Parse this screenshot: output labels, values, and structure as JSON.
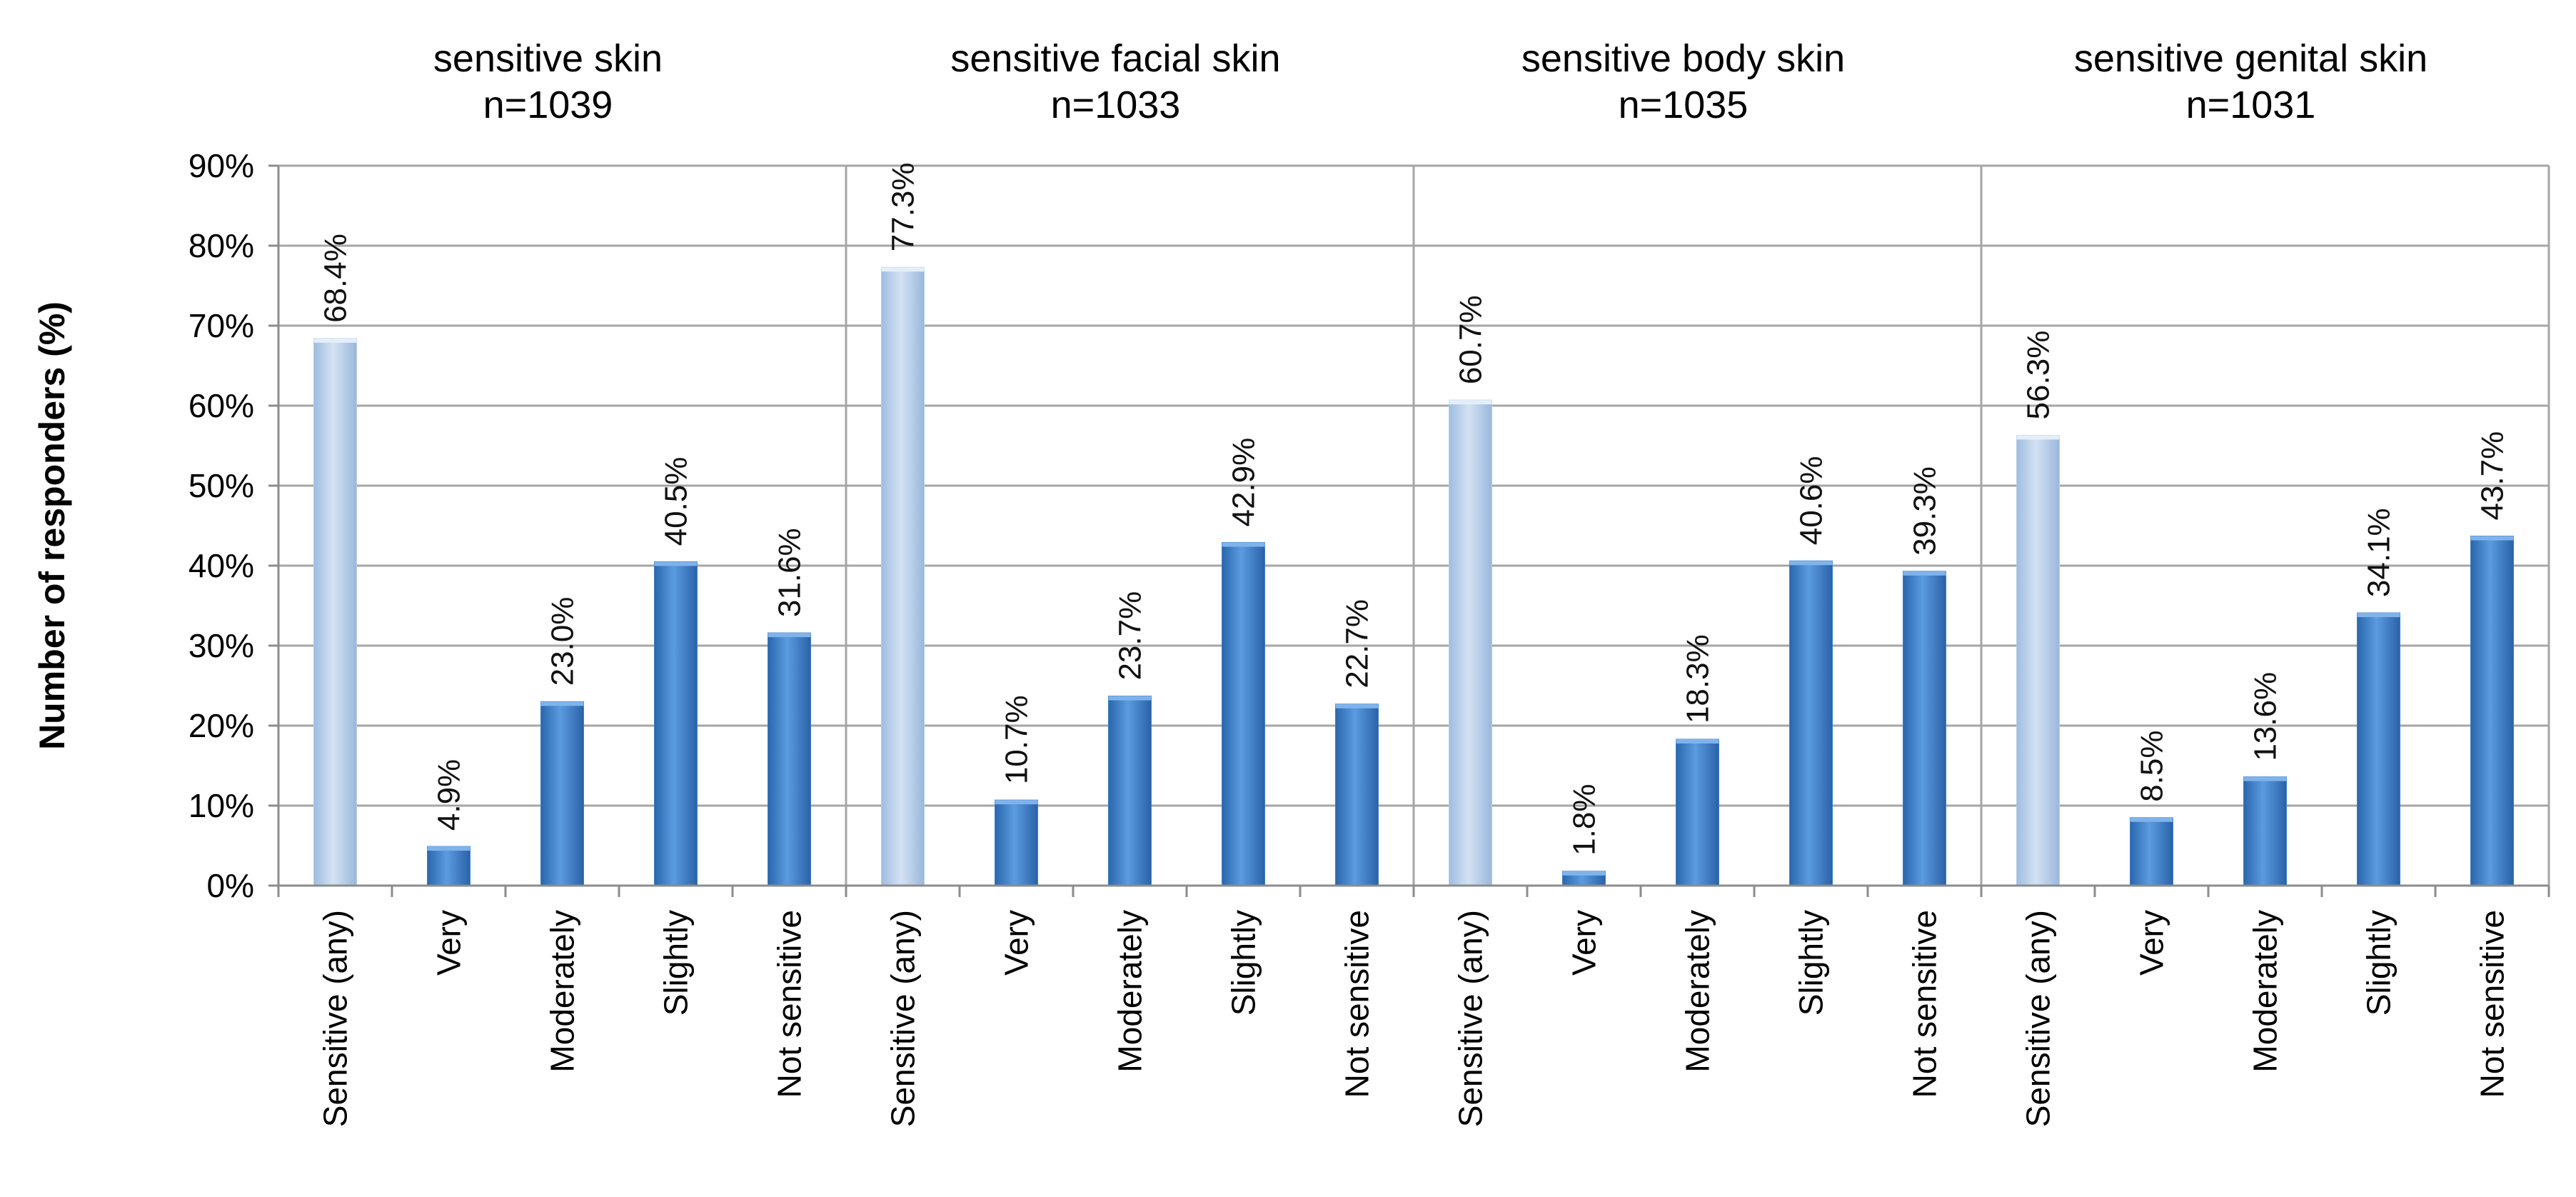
{
  "chart_data": {
    "type": "bar",
    "ylabel": "Number of responders (%)",
    "ylim": [
      0,
      90
    ],
    "yticks": [
      "0%",
      "10%",
      "20%",
      "30%",
      "40%",
      "50%",
      "60%",
      "70%",
      "80%",
      "90%"
    ],
    "categories": [
      "Sensitive (any)",
      "Very",
      "Moderately",
      "Slightly",
      "Not sensitive"
    ],
    "colors": {
      "sensitive_any": "#b7cde8",
      "levels": "#3d7fc6"
    },
    "panels": [
      {
        "title": "sensitive skin",
        "n": "n=1039",
        "values": [
          68.4,
          4.9,
          23.0,
          40.5,
          31.6
        ],
        "labels": [
          "68.4%",
          "4.9%",
          "23.0%",
          "40.5%",
          "31.6%"
        ]
      },
      {
        "title": "sensitive facial skin",
        "n": "n=1033",
        "values": [
          77.3,
          10.7,
          23.7,
          42.9,
          22.7
        ],
        "labels": [
          "77.3%",
          "10.7%",
          "23.7%",
          "42.9%",
          "22.7%"
        ]
      },
      {
        "title": "sensitive body skin",
        "n": "n=1035",
        "values": [
          60.7,
          1.8,
          18.3,
          40.6,
          39.3
        ],
        "labels": [
          "60.7%",
          "1.8%",
          "18.3%",
          "40.6%",
          "39.3%"
        ]
      },
      {
        "title": "sensitive genital skin",
        "n": "n=1031",
        "values": [
          56.3,
          8.5,
          13.6,
          34.1,
          43.7
        ],
        "labels": [
          "56.3%",
          "8.5%",
          "13.6%",
          "34.1%",
          "43.7%"
        ]
      }
    ]
  }
}
